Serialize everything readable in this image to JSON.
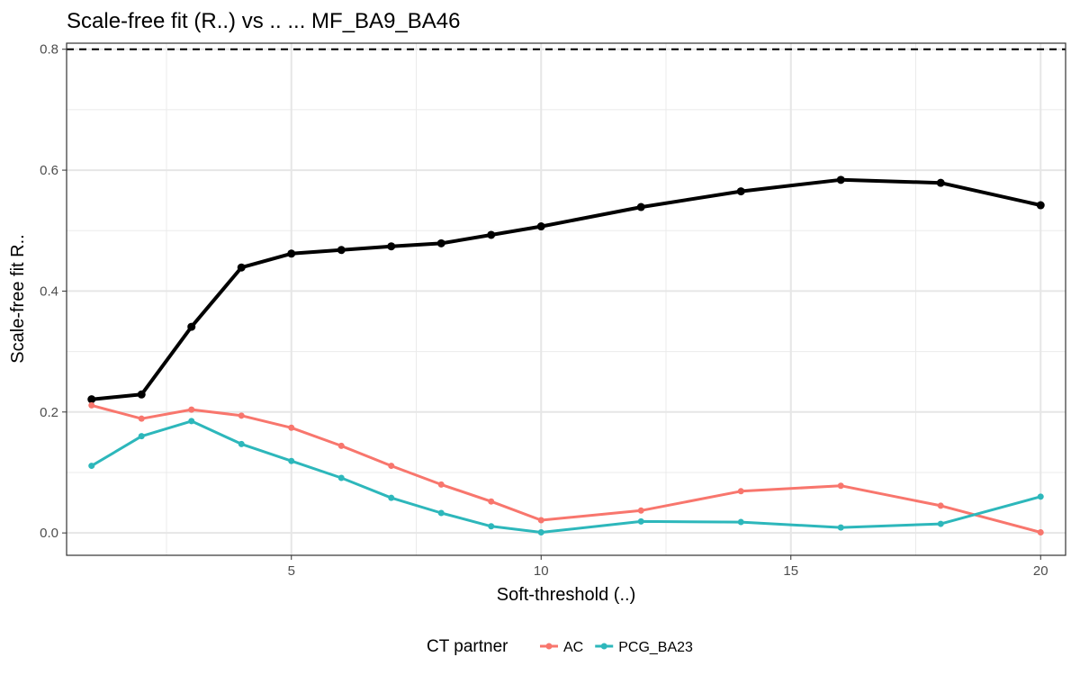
{
  "chart_data": {
    "type": "line",
    "title": "Scale-free fit (R..) vs .. ... MF_BA9_BA46",
    "xlabel": "Soft-threshold (..)",
    "ylabel": "Scale-free fit R..",
    "xlim": [
      0.5,
      20.5
    ],
    "ylim": [
      -0.037,
      0.81
    ],
    "x_ticks": [
      5,
      10,
      15,
      20
    ],
    "y_ticks": [
      0.0,
      0.2,
      0.4,
      0.6,
      0.8
    ],
    "x_tick_labels": [
      "5",
      "10",
      "15",
      "20"
    ],
    "y_tick_labels": [
      "0.0",
      "0.2",
      "0.4",
      "0.6",
      "0.8"
    ],
    "grid": true,
    "threshold_line": {
      "y": 0.8,
      "style": "dashed",
      "color": "#000000"
    },
    "x": [
      1,
      2,
      3,
      4,
      5,
      6,
      7,
      8,
      9,
      10,
      12,
      14,
      16,
      18,
      20
    ],
    "series": [
      {
        "key": "overall",
        "color": "#000000",
        "in_legend": false,
        "values": [
          0.221,
          0.229,
          0.341,
          0.439,
          0.462,
          0.468,
          0.474,
          0.479,
          0.493,
          0.507,
          0.539,
          0.565,
          0.584,
          0.579,
          0.542
        ]
      },
      {
        "name": "AC",
        "color": "#F8766D",
        "in_legend": true,
        "values": [
          0.211,
          0.189,
          0.204,
          0.194,
          0.174,
          0.144,
          0.111,
          0.08,
          0.052,
          0.021,
          0.037,
          0.069,
          0.078,
          0.045,
          0.001
        ]
      },
      {
        "name": "PCG_BA23",
        "color": "#2DB7BB",
        "in_legend": true,
        "values": [
          0.111,
          0.16,
          0.185,
          0.147,
          0.119,
          0.091,
          0.058,
          0.033,
          0.011,
          0.001,
          0.019,
          0.018,
          0.009,
          0.015,
          0.06
        ]
      }
    ],
    "legend": {
      "title": "CT partner",
      "position": "bottom"
    }
  }
}
